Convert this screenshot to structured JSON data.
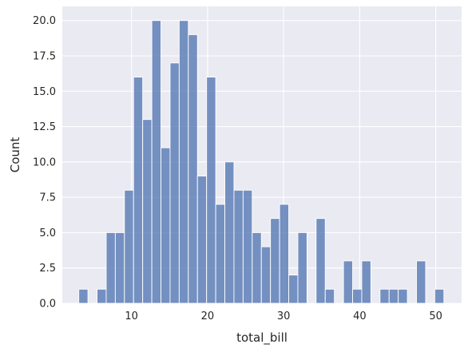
{
  "chart_data": {
    "type": "bar",
    "title": "",
    "xlabel": "total_bill",
    "ylabel": "Count",
    "xlim": [
      0.9,
      53.4
    ],
    "ylim": [
      0,
      21
    ],
    "grid": true,
    "bin_width": 1.2,
    "x_ticks": [
      10,
      20,
      30,
      40,
      50
    ],
    "x_tick_labels": [
      "10",
      "20",
      "30",
      "40",
      "50"
    ],
    "y_ticks": [
      0,
      2.5,
      5,
      7.5,
      10,
      12.5,
      15,
      17.5,
      20
    ],
    "y_tick_labels": [
      "0.0",
      "2.5",
      "5.0",
      "7.5",
      "10.0",
      "12.5",
      "15.0",
      "17.5",
      "20.0"
    ],
    "colors": {
      "background": "#eaeaf2",
      "grid": "#ffffff",
      "bar": "#4c72b0",
      "bar_edge": "#ffffff"
    },
    "bins": [
      {
        "x0": 3.07,
        "x1": 4.27,
        "count": 1
      },
      {
        "x0": 4.27,
        "x1": 5.47,
        "count": 0
      },
      {
        "x0": 5.47,
        "x1": 6.67,
        "count": 1
      },
      {
        "x0": 6.67,
        "x1": 7.87,
        "count": 5
      },
      {
        "x0": 7.87,
        "x1": 9.07,
        "count": 5
      },
      {
        "x0": 9.07,
        "x1": 10.27,
        "count": 8
      },
      {
        "x0": 10.27,
        "x1": 11.47,
        "count": 16
      },
      {
        "x0": 11.47,
        "x1": 12.67,
        "count": 13
      },
      {
        "x0": 12.67,
        "x1": 13.87,
        "count": 20
      },
      {
        "x0": 13.87,
        "x1": 15.07,
        "count": 11
      },
      {
        "x0": 15.07,
        "x1": 16.27,
        "count": 17
      },
      {
        "x0": 16.27,
        "x1": 17.47,
        "count": 20
      },
      {
        "x0": 17.47,
        "x1": 18.67,
        "count": 19
      },
      {
        "x0": 18.67,
        "x1": 19.87,
        "count": 9
      },
      {
        "x0": 19.87,
        "x1": 21.07,
        "count": 16
      },
      {
        "x0": 21.07,
        "x1": 22.27,
        "count": 7
      },
      {
        "x0": 22.27,
        "x1": 23.47,
        "count": 10
      },
      {
        "x0": 23.47,
        "x1": 24.67,
        "count": 8
      },
      {
        "x0": 24.67,
        "x1": 25.87,
        "count": 8
      },
      {
        "x0": 25.87,
        "x1": 27.07,
        "count": 5
      },
      {
        "x0": 27.07,
        "x1": 28.27,
        "count": 4
      },
      {
        "x0": 28.27,
        "x1": 29.47,
        "count": 6
      },
      {
        "x0": 29.47,
        "x1": 30.67,
        "count": 7
      },
      {
        "x0": 30.67,
        "x1": 31.87,
        "count": 2
      },
      {
        "x0": 31.87,
        "x1": 33.07,
        "count": 5
      },
      {
        "x0": 33.07,
        "x1": 34.27,
        "count": 0
      },
      {
        "x0": 34.27,
        "x1": 35.47,
        "count": 6
      },
      {
        "x0": 35.47,
        "x1": 36.67,
        "count": 1
      },
      {
        "x0": 36.67,
        "x1": 37.87,
        "count": 0
      },
      {
        "x0": 37.87,
        "x1": 39.07,
        "count": 3
      },
      {
        "x0": 39.07,
        "x1": 40.27,
        "count": 1
      },
      {
        "x0": 40.27,
        "x1": 41.47,
        "count": 3
      },
      {
        "x0": 41.47,
        "x1": 42.67,
        "count": 0
      },
      {
        "x0": 42.67,
        "x1": 43.87,
        "count": 1
      },
      {
        "x0": 43.87,
        "x1": 45.07,
        "count": 1
      },
      {
        "x0": 45.07,
        "x1": 46.27,
        "count": 1
      },
      {
        "x0": 46.27,
        "x1": 47.47,
        "count": 0
      },
      {
        "x0": 47.47,
        "x1": 48.67,
        "count": 3
      },
      {
        "x0": 48.67,
        "x1": 49.87,
        "count": 0
      },
      {
        "x0": 49.87,
        "x1": 51.07,
        "count": 1
      }
    ]
  }
}
